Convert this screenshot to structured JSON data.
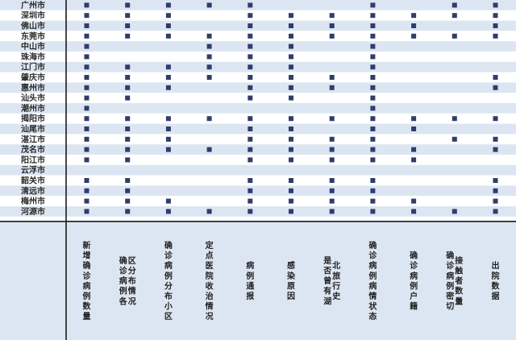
{
  "chart_data": {
    "type": "table",
    "rows": [
      "广州市",
      "深圳市",
      "佛山市",
      "东莞市",
      "中山市",
      "珠海市",
      "江门市",
      "肇庆市",
      "惠州市",
      "汕头市",
      "潮州市",
      "揭阳市",
      "汕尾市",
      "湛江市",
      "茂名市",
      "阳江市",
      "云浮市",
      "韶关市",
      "清远市",
      "梅州市",
      "河源市"
    ],
    "columns": [
      "新增确诊病例数量",
      "确诊病例各区分布情况",
      "确诊病例分布小区",
      "定点医院收治情况",
      "病例通报",
      "感染原因",
      "是否曾有湖北旅行史",
      "确诊病例病情状态",
      "确诊病例户籍",
      "确诊病例密切接触者数量",
      "出院数据"
    ],
    "matrix": [
      [
        1,
        1,
        1,
        1,
        1,
        0,
        0,
        1,
        0,
        1,
        1
      ],
      [
        1,
        1,
        1,
        0,
        1,
        1,
        1,
        1,
        1,
        1,
        1
      ],
      [
        1,
        1,
        1,
        0,
        1,
        1,
        1,
        1,
        1,
        0,
        1
      ],
      [
        1,
        1,
        1,
        1,
        1,
        1,
        1,
        1,
        1,
        1,
        1
      ],
      [
        1,
        0,
        0,
        1,
        1,
        1,
        0,
        1,
        0,
        0,
        0
      ],
      [
        1,
        0,
        0,
        1,
        1,
        1,
        0,
        1,
        0,
        0,
        0
      ],
      [
        1,
        1,
        1,
        1,
        1,
        1,
        0,
        1,
        0,
        0,
        0
      ],
      [
        1,
        1,
        1,
        1,
        1,
        1,
        1,
        1,
        0,
        0,
        1
      ],
      [
        1,
        1,
        1,
        0,
        1,
        1,
        1,
        1,
        0,
        0,
        1
      ],
      [
        1,
        1,
        0,
        0,
        1,
        1,
        0,
        1,
        0,
        0,
        0
      ],
      [
        1,
        0,
        0,
        0,
        0,
        0,
        0,
        1,
        0,
        0,
        0
      ],
      [
        1,
        1,
        1,
        1,
        1,
        1,
        1,
        1,
        1,
        1,
        1
      ],
      [
        1,
        1,
        1,
        0,
        1,
        1,
        0,
        1,
        1,
        0,
        0
      ],
      [
        1,
        1,
        1,
        0,
        1,
        1,
        1,
        1,
        0,
        1,
        1
      ],
      [
        1,
        1,
        1,
        1,
        1,
        1,
        1,
        1,
        1,
        0,
        1
      ],
      [
        1,
        1,
        0,
        0,
        1,
        1,
        1,
        1,
        1,
        0,
        0
      ],
      [
        0,
        0,
        0,
        0,
        0,
        0,
        0,
        0,
        0,
        0,
        0
      ],
      [
        1,
        1,
        0,
        0,
        1,
        1,
        1,
        1,
        0,
        0,
        1
      ],
      [
        1,
        1,
        0,
        0,
        1,
        1,
        1,
        1,
        0,
        0,
        1
      ],
      [
        1,
        1,
        1,
        0,
        1,
        1,
        1,
        1,
        1,
        0,
        1
      ],
      [
        1,
        1,
        1,
        1,
        1,
        1,
        1,
        1,
        1,
        1,
        1
      ]
    ],
    "colors": {
      "stripe": "#dce6f2",
      "header_bg": "#dce6f2",
      "plain_bg": "#ffffff",
      "mark": "#2f3d6b",
      "divider": "#1a1a1a"
    }
  }
}
